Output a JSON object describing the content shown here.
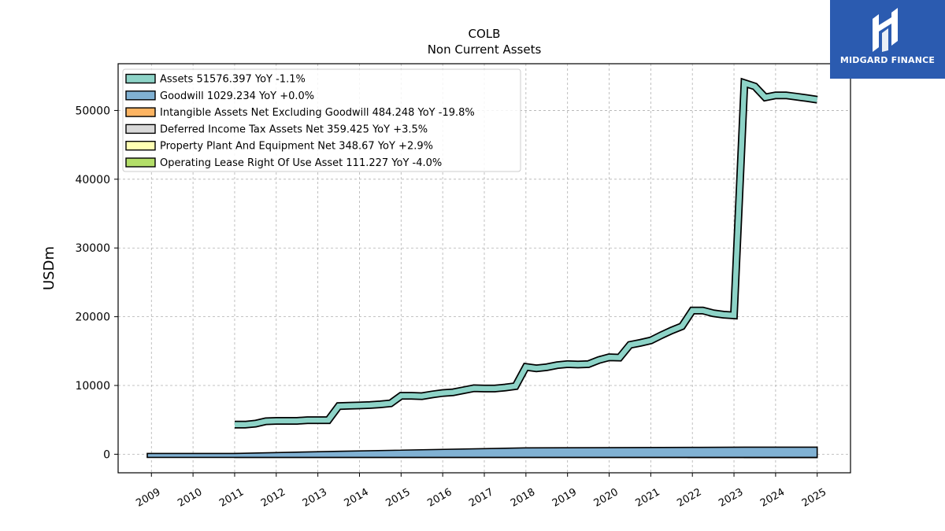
{
  "brand": {
    "name": "MIDGARD FINANCE",
    "logo_icon": "midgard-logo-icon",
    "color": "#2b5bb0"
  },
  "chart_data": {
    "type": "area",
    "title": "COLB",
    "subtitle": "Non Current  Assets",
    "ylabel": "USDm",
    "xlabel": "",
    "xlim": [
      2008.2,
      2025.8
    ],
    "ylim": [
      -2700,
      56800
    ],
    "yticks": [
      0,
      10000,
      20000,
      30000,
      40000,
      50000
    ],
    "xticks": [
      2009,
      2010,
      2011,
      2012,
      2013,
      2014,
      2015,
      2016,
      2017,
      2018,
      2019,
      2020,
      2021,
      2022,
      2023,
      2024,
      2025
    ],
    "grid": true,
    "legend_position": "top-left",
    "series": [
      {
        "name": "Assets",
        "legend": "Assets  51576.397 YoY -1.1%",
        "color": "#8dd3c7",
        "points": [
          [
            2011.0,
            4300
          ],
          [
            2011.25,
            4300
          ],
          [
            2011.5,
            4450
          ],
          [
            2011.75,
            4800
          ],
          [
            2012.0,
            4850
          ],
          [
            2012.25,
            4850
          ],
          [
            2012.5,
            4850
          ],
          [
            2012.75,
            4950
          ],
          [
            2013.0,
            4950
          ],
          [
            2013.25,
            4950
          ],
          [
            2013.5,
            7000
          ],
          [
            2013.75,
            7050
          ],
          [
            2014.0,
            7100
          ],
          [
            2014.25,
            7150
          ],
          [
            2014.5,
            7250
          ],
          [
            2014.75,
            7400
          ],
          [
            2015.0,
            8500
          ],
          [
            2015.25,
            8500
          ],
          [
            2015.5,
            8450
          ],
          [
            2015.75,
            8700
          ],
          [
            2016.0,
            8900
          ],
          [
            2016.25,
            9000
          ],
          [
            2016.5,
            9300
          ],
          [
            2016.75,
            9600
          ],
          [
            2017.0,
            9550
          ],
          [
            2017.25,
            9550
          ],
          [
            2017.5,
            9700
          ],
          [
            2017.75,
            9900
          ],
          [
            2018.0,
            12700
          ],
          [
            2018.25,
            12500
          ],
          [
            2018.5,
            12650
          ],
          [
            2018.75,
            12950
          ],
          [
            2019.0,
            13100
          ],
          [
            2019.25,
            13050
          ],
          [
            2019.5,
            13100
          ],
          [
            2019.75,
            13700
          ],
          [
            2020.0,
            14100
          ],
          [
            2020.25,
            14050
          ],
          [
            2020.5,
            15900
          ],
          [
            2020.75,
            16200
          ],
          [
            2021.0,
            16550
          ],
          [
            2021.25,
            17300
          ],
          [
            2021.5,
            18000
          ],
          [
            2021.75,
            18600
          ],
          [
            2022.0,
            20900
          ],
          [
            2022.25,
            20900
          ],
          [
            2022.5,
            20500
          ],
          [
            2022.75,
            20300
          ],
          [
            2023.0,
            20200
          ],
          [
            2023.25,
            54000
          ],
          [
            2023.5,
            53500
          ],
          [
            2023.75,
            51900
          ],
          [
            2024.0,
            52200
          ],
          [
            2024.25,
            52200
          ],
          [
            2024.5,
            52000
          ],
          [
            2024.75,
            51800
          ],
          [
            2025.0,
            51576
          ]
        ]
      },
      {
        "name": "Goodwill",
        "legend": "Goodwill  1029.234 YoY +0.0%",
        "color": "#80b1d3",
        "points": [
          [
            2008.9,
            115
          ],
          [
            2011.0,
            115
          ],
          [
            2013.5,
            420
          ],
          [
            2018.0,
            925
          ],
          [
            2022.0,
            1000
          ],
          [
            2023.25,
            1029
          ],
          [
            2025.0,
            1029
          ]
        ]
      },
      {
        "name": "Intangible Assets Net Excluding Goodwill",
        "legend": "Intangible Assets Net Excluding Goodwill  484.248 YoY -19.8%",
        "color": "#fdb462",
        "points": [
          [
            2023.25,
            800
          ],
          [
            2025.0,
            484
          ]
        ]
      },
      {
        "name": "Deferred Income Tax Assets Net",
        "legend": "Deferred Income Tax Assets Net  359.425 YoY +3.5%",
        "color": "#d9d9d9",
        "points": [
          [
            2023.25,
            350
          ],
          [
            2025.0,
            359
          ]
        ]
      },
      {
        "name": "Property Plant And Equipment Net",
        "legend": "Property Plant And Equipment Net  348.67 YoY +2.9%",
        "color": "#ffffb3",
        "points": [
          [
            2011.0,
            100
          ],
          [
            2012.0,
            100
          ],
          [
            2013.0,
            115
          ],
          [
            2014.0,
            125
          ],
          [
            2015.0,
            130
          ],
          [
            2016.0,
            140
          ],
          [
            2017.0,
            140
          ],
          [
            2018.0,
            140
          ],
          [
            2019.0,
            140
          ],
          [
            2020.0,
            140
          ],
          [
            2021.0,
            140
          ],
          [
            2021.9,
            145
          ],
          [
            2023.25,
            340
          ],
          [
            2025.0,
            349
          ]
        ]
      },
      {
        "name": "Operating Lease Right Of Use Asset",
        "legend": "Operating Lease Right Of Use Asset  111.227 YoY -4.0%",
        "color": "#b3de69",
        "points": [
          [
            2021.9,
            115
          ],
          [
            2023.25,
            115
          ],
          [
            2025.0,
            111
          ]
        ]
      }
    ]
  }
}
